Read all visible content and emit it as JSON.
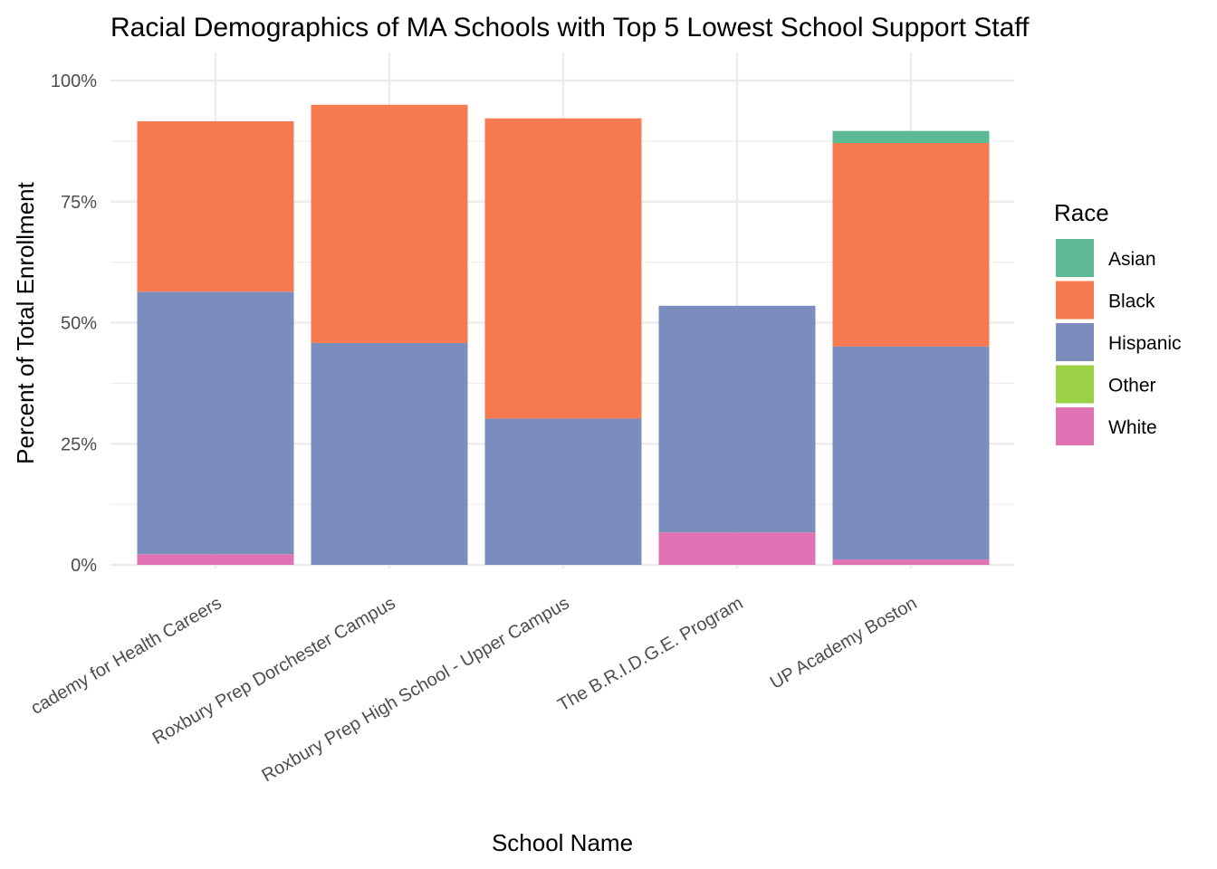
{
  "chart_data": {
    "type": "bar",
    "stacked": true,
    "title": "Racial Demographics of MA Schools with Top 5 Lowest School Support Staff",
    "xlabel": "School Name",
    "ylabel": "Percent of Total Enrollment",
    "ylim": [
      0,
      100
    ],
    "y_ticks": [
      "0%",
      "25%",
      "50%",
      "75%",
      "100%"
    ],
    "y_tick_values": [
      0,
      25,
      50,
      75,
      100
    ],
    "grid": true,
    "legend_position": "right",
    "legend_title": "Race",
    "categories": [
      "Academy for Health Careers",
      "Roxbury Prep Dorchester Campus",
      "Roxbury Prep High School - Upper Campus",
      "The B.R.I.D.G.E. Program",
      "UP Academy Boston"
    ],
    "category_labels_visible": [
      "cademy for Health Careers",
      "Roxbury Prep Dorchester Campus",
      "Roxbury Prep High School - Upper Campus",
      "The B.R.I.D.G.E. Program",
      "UP Academy Boston"
    ],
    "stack_order": [
      "White",
      "Hispanic",
      "Black",
      "Asian",
      "Other"
    ],
    "legend_order": [
      "Asian",
      "Black",
      "Hispanic",
      "Other",
      "White"
    ],
    "colors": {
      "Asian": "#5cb994",
      "Black": "#f77a51",
      "Hispanic": "#7b8dbd",
      "Other": "#9ad147",
      "White": "#e173b4"
    },
    "series": [
      {
        "name": "Asian",
        "values": [
          0,
          0,
          0,
          0,
          2.5
        ]
      },
      {
        "name": "Black",
        "values": [
          35.2,
          49.2,
          62.0,
          0,
          42.0
        ]
      },
      {
        "name": "Hispanic",
        "values": [
          54.2,
          45.8,
          30.2,
          46.8,
          44.0
        ]
      },
      {
        "name": "Other",
        "values": [
          0,
          0,
          0,
          0,
          0
        ]
      },
      {
        "name": "White",
        "values": [
          2.2,
          0,
          0,
          6.7,
          1.1
        ]
      }
    ]
  }
}
